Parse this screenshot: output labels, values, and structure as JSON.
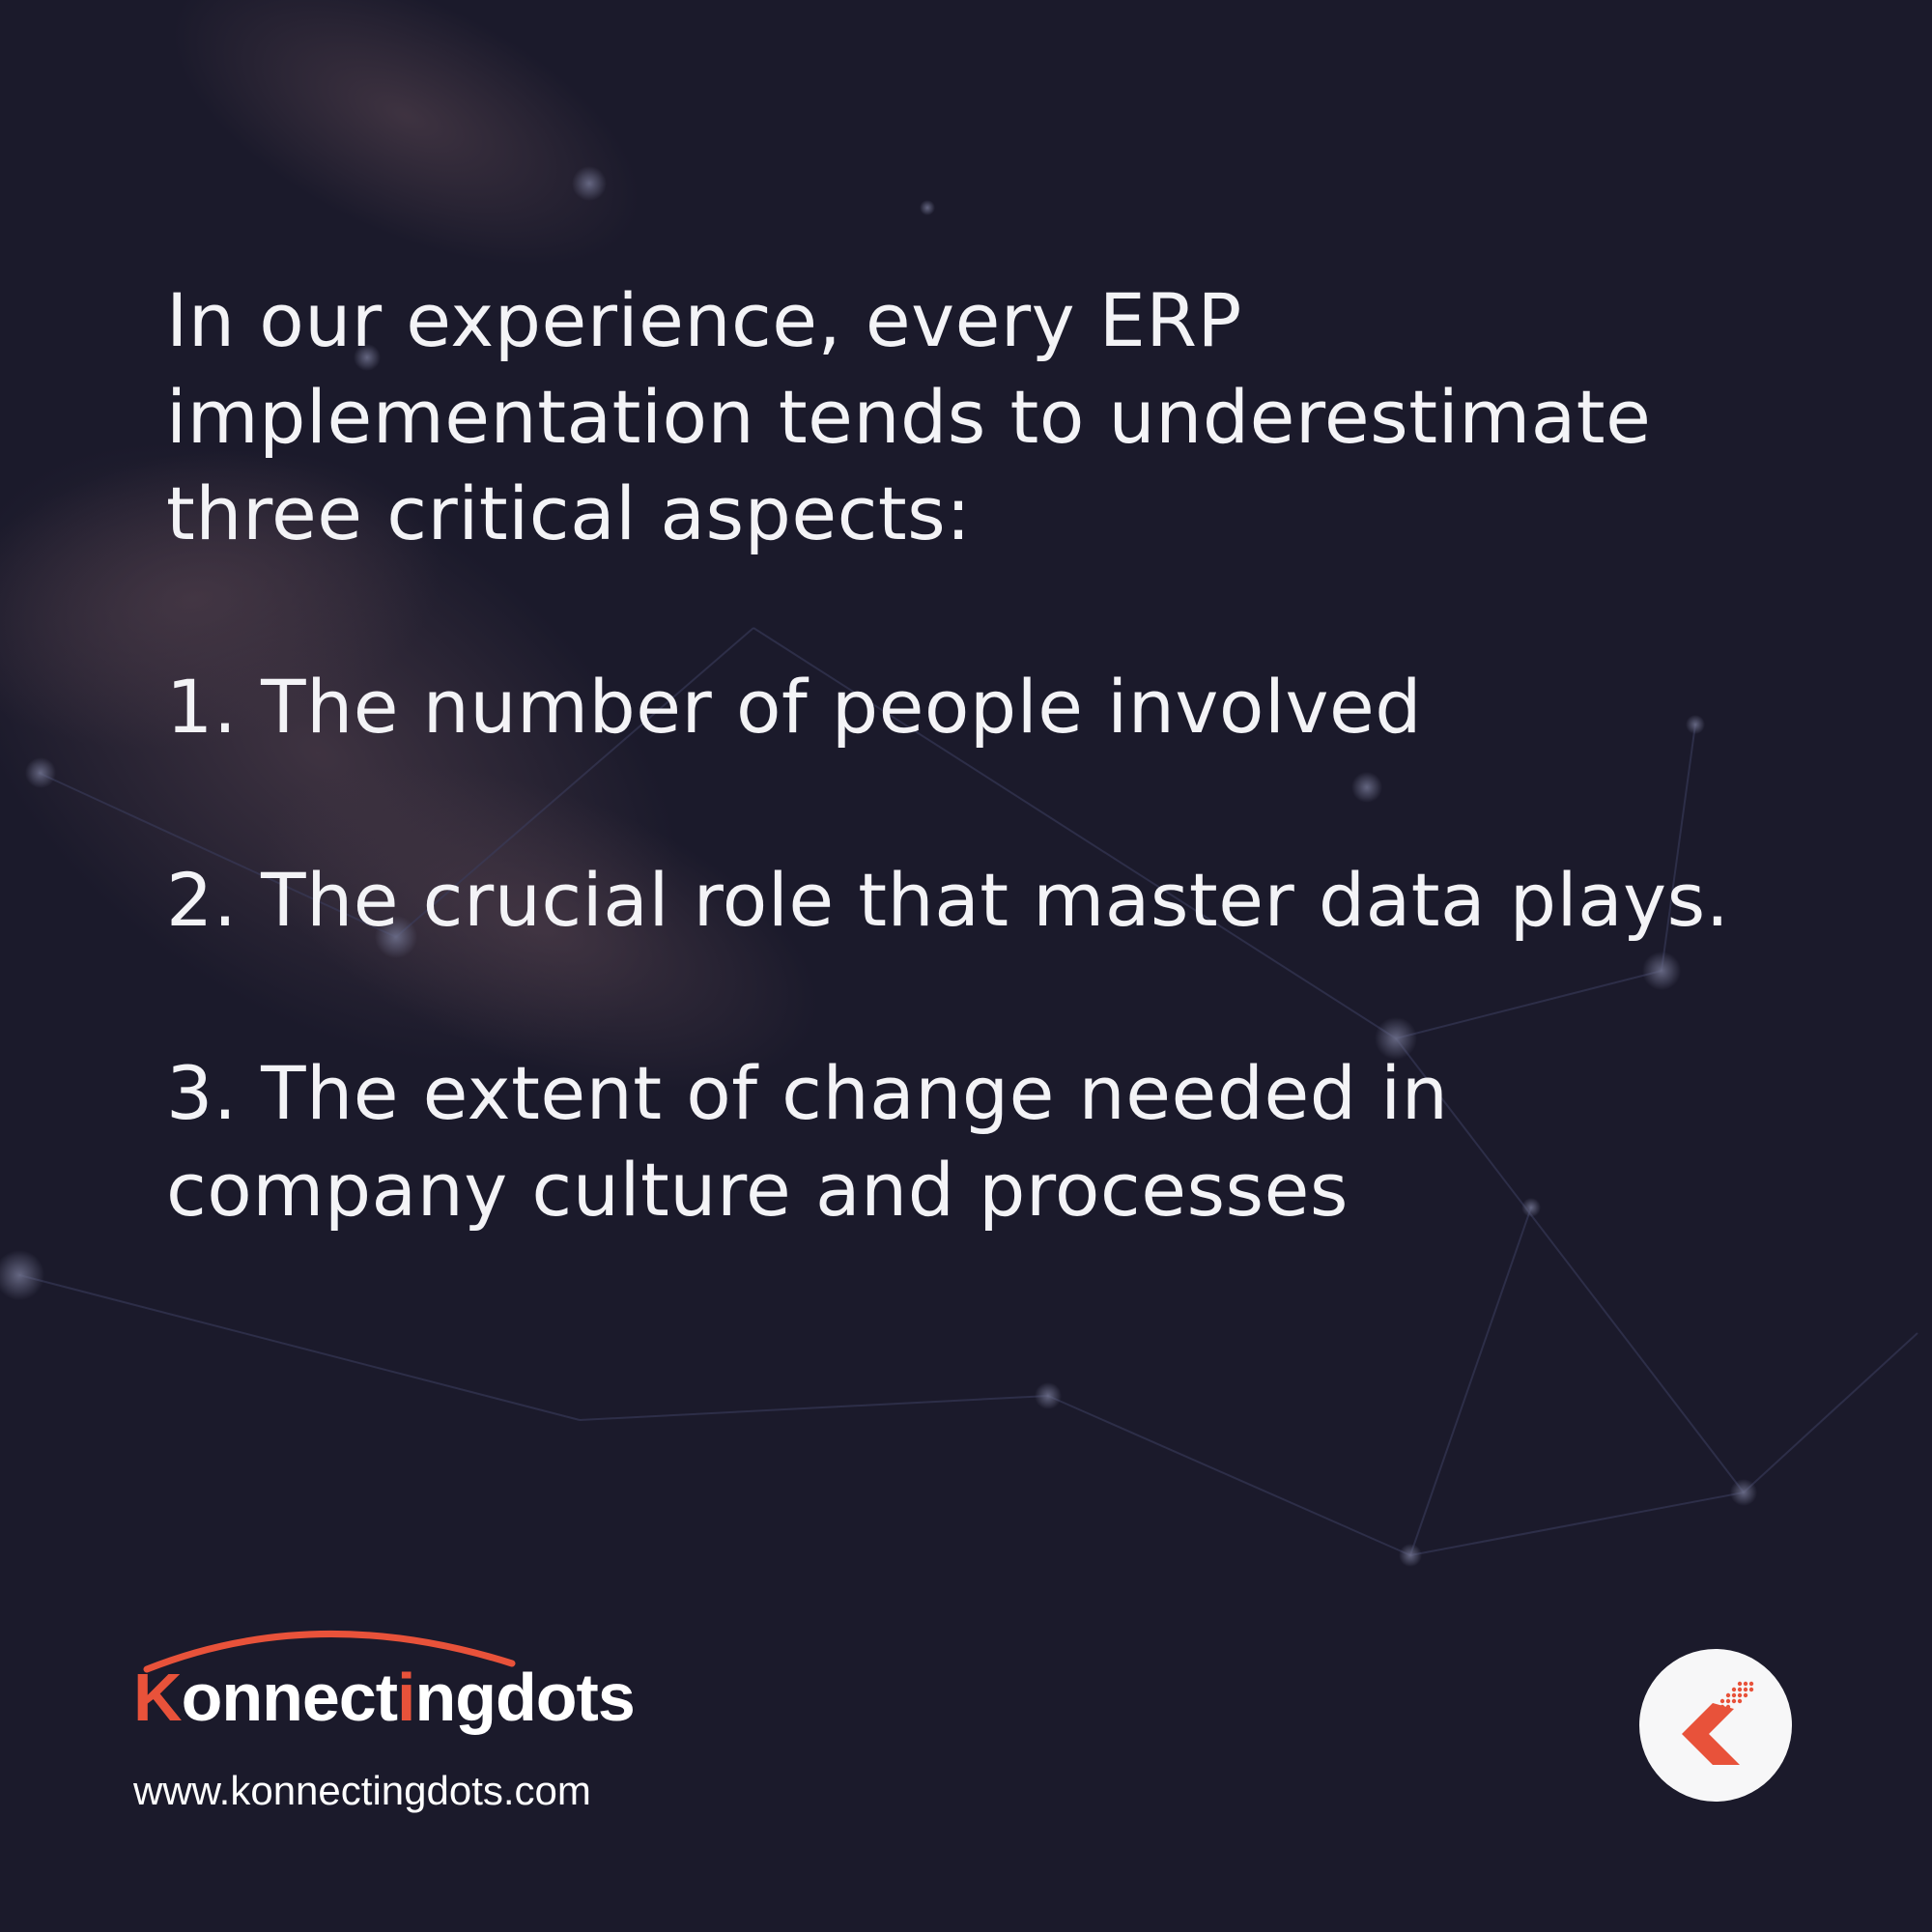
{
  "post": {
    "intro": "In our experience, every ERP implementation tends to underestimate three critical aspects:",
    "points": [
      "1. The number of people involved",
      "2. The crucial role that master data plays.",
      "3. The extent of change needed in company culture and processes"
    ]
  },
  "brand": {
    "logo_text_first": "K",
    "logo_text_middle": "onnect",
    "logo_text_accent": "i",
    "logo_text_end": "ngdots",
    "website": "www.konnectingdots.com",
    "logo_icon": "konnectingdots-k-mark-icon"
  },
  "colors": {
    "background": "#1b1a2b",
    "text": "#f3f3f6",
    "accent": "#e8523a",
    "badge": "#f7f7f8"
  }
}
